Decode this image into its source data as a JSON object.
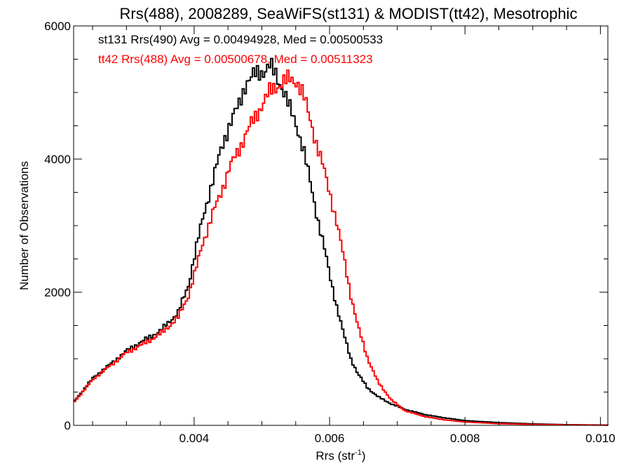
{
  "chart_data": {
    "type": "line",
    "style": "step",
    "title": "Rrs(488), 2008289, SeaWiFS(st131) & MODIST(tt42), Mesotrophic",
    "xlabel": "Rrs (str",
    "xlabel_sup": "-1",
    "xlabel_close": ")",
    "ylabel": "Number of Observations",
    "xlim": [
      0.00222,
      0.01011
    ],
    "ylim": [
      0,
      6000
    ],
    "x_ticks": [
      {
        "value": 0.004,
        "label": "0.004"
      },
      {
        "value": 0.006,
        "label": "0.006"
      },
      {
        "value": 0.008,
        "label": "0.008"
      },
      {
        "value": 0.01,
        "label": "0.010"
      }
    ],
    "y_ticks": [
      {
        "value": 0,
        "label": "0"
      },
      {
        "value": 2000,
        "label": "2000"
      },
      {
        "value": 4000,
        "label": "4000"
      },
      {
        "value": 6000,
        "label": "6000"
      }
    ],
    "grid": false,
    "legend_position": "top-left",
    "series": [
      {
        "color": "#000000",
        "legend": "st131 Rrs(490) Avg = 0.00494928, Med = 0.00500533",
        "points": [
          [
            0.00222,
            370
          ],
          [
            0.0025,
            720
          ],
          [
            0.00275,
            920
          ],
          [
            0.003,
            1130
          ],
          [
            0.00325,
            1280
          ],
          [
            0.0035,
            1430
          ],
          [
            0.00375,
            1700
          ],
          [
            0.0039,
            2100
          ],
          [
            0.004,
            2600
          ],
          [
            0.0041,
            3050
          ],
          [
            0.00425,
            3650
          ],
          [
            0.0044,
            4200
          ],
          [
            0.0045,
            4500
          ],
          [
            0.00465,
            4820
          ],
          [
            0.00475,
            5150
          ],
          [
            0.0049,
            5280
          ],
          [
            0.005,
            5320
          ],
          [
            0.0051,
            5400
          ],
          [
            0.0052,
            5250
          ],
          [
            0.0053,
            5050
          ],
          [
            0.0054,
            4750
          ],
          [
            0.0055,
            4500
          ],
          [
            0.0056,
            4150
          ],
          [
            0.0057,
            3650
          ],
          [
            0.0058,
            3150
          ],
          [
            0.0059,
            2700
          ],
          [
            0.006,
            2200
          ],
          [
            0.0061,
            1750
          ],
          [
            0.0062,
            1350
          ],
          [
            0.0063,
            1000
          ],
          [
            0.0064,
            780
          ],
          [
            0.00655,
            560
          ],
          [
            0.0067,
            430
          ],
          [
            0.0069,
            320
          ],
          [
            0.0071,
            240
          ],
          [
            0.0074,
            160
          ],
          [
            0.0077,
            110
          ],
          [
            0.008,
            70
          ],
          [
            0.0085,
            40
          ],
          [
            0.009,
            22
          ],
          [
            0.0095,
            10
          ],
          [
            0.01011,
            4
          ]
        ]
      },
      {
        "color": "#ff0000",
        "legend": "tt42 Rrs(488) Avg = 0.00500678, Med = 0.00511323",
        "points": [
          [
            0.00222,
            360
          ],
          [
            0.0025,
            700
          ],
          [
            0.00275,
            900
          ],
          [
            0.003,
            1100
          ],
          [
            0.00325,
            1230
          ],
          [
            0.0035,
            1380
          ],
          [
            0.00375,
            1620
          ],
          [
            0.0039,
            1950
          ],
          [
            0.004,
            2300
          ],
          [
            0.0041,
            2700
          ],
          [
            0.00425,
            3150
          ],
          [
            0.0044,
            3550
          ],
          [
            0.0045,
            3850
          ],
          [
            0.00465,
            4150
          ],
          [
            0.00475,
            4380
          ],
          [
            0.0049,
            4650
          ],
          [
            0.005,
            4850
          ],
          [
            0.0051,
            5000
          ],
          [
            0.0052,
            5100
          ],
          [
            0.0053,
            5150
          ],
          [
            0.0054,
            5200
          ],
          [
            0.0055,
            5180
          ],
          [
            0.0056,
            4950
          ],
          [
            0.0057,
            4600
          ],
          [
            0.0058,
            4200
          ],
          [
            0.0059,
            3850
          ],
          [
            0.006,
            3450
          ],
          [
            0.0061,
            3000
          ],
          [
            0.0062,
            2500
          ],
          [
            0.0063,
            1950
          ],
          [
            0.0064,
            1500
          ],
          [
            0.00655,
            1000
          ],
          [
            0.0067,
            650
          ],
          [
            0.0069,
            380
          ],
          [
            0.0071,
            220
          ],
          [
            0.0074,
            130
          ],
          [
            0.0077,
            80
          ],
          [
            0.008,
            50
          ],
          [
            0.0085,
            25
          ],
          [
            0.009,
            14
          ],
          [
            0.0095,
            7
          ],
          [
            0.01011,
            3
          ]
        ]
      }
    ]
  }
}
